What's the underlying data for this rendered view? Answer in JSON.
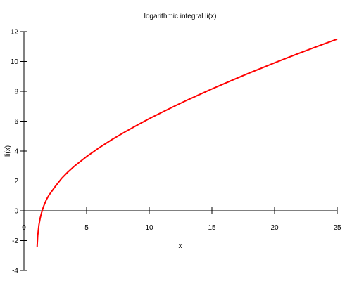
{
  "chart_data": {
    "type": "line",
    "title": "logarithmic integral li(x)",
    "xlabel": "x",
    "ylabel": "li(x)",
    "xlim": [
      0,
      25
    ],
    "ylim": [
      -4,
      12
    ],
    "x_ticks": [
      0,
      5,
      10,
      15,
      20,
      25
    ],
    "y_ticks": [
      -4,
      -2,
      0,
      2,
      4,
      6,
      8,
      10,
      12
    ],
    "grid": false,
    "legend": "none",
    "series": [
      {
        "color": "#ff0000",
        "x": [
          1.05,
          1.1,
          1.2,
          1.3,
          1.4,
          1.45,
          1.5,
          1.6,
          1.8,
          2,
          2.5,
          3,
          3.5,
          4,
          5,
          6,
          7,
          8,
          9,
          10,
          11,
          12,
          13,
          14,
          15,
          16,
          17,
          18,
          19,
          20,
          21,
          22,
          23,
          24,
          25
        ],
        "y": [
          -2.43,
          -1.68,
          -0.93,
          -0.48,
          -0.15,
          -0.02,
          0.13,
          0.36,
          0.76,
          1.05,
          1.63,
          2.16,
          2.59,
          2.97,
          3.63,
          4.22,
          4.76,
          5.25,
          5.72,
          6.17,
          6.59,
          7.0,
          7.4,
          7.78,
          8.16,
          8.52,
          8.88,
          9.23,
          9.57,
          9.91,
          10.24,
          10.56,
          10.88,
          11.19,
          11.5
        ]
      }
    ]
  }
}
